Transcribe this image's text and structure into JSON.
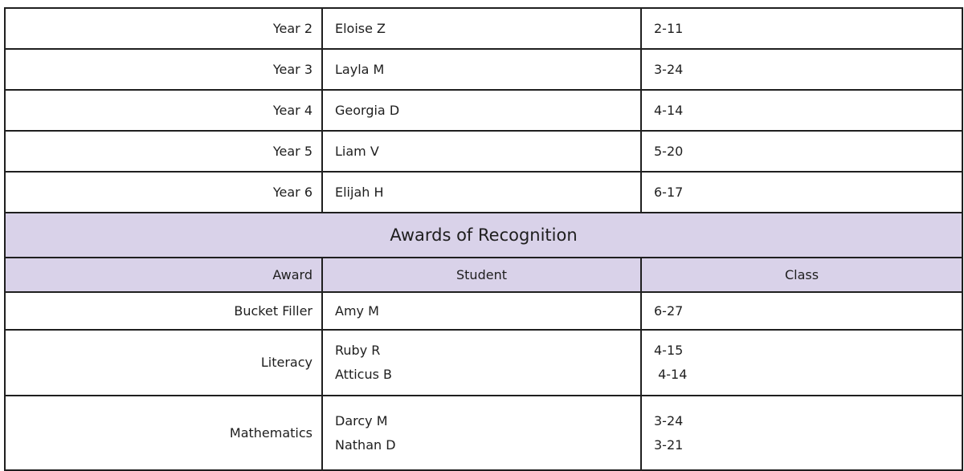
{
  "colors": {
    "header_bg": "#d9d2e9",
    "border": "#1f1f1f",
    "text": "#1e1e1e",
    "page_bg": "#ffffff"
  },
  "table": {
    "year_rows": [
      {
        "year": "Year 2",
        "student": "Eloise Z",
        "class": "2-11"
      },
      {
        "year": "Year 3",
        "student": "Layla M",
        "class": "3-24"
      },
      {
        "year": "Year 4",
        "student": "Georgia D",
        "class": "4-14"
      },
      {
        "year": "Year 5",
        "student": "Liam V",
        "class": "5-20"
      },
      {
        "year": "Year 6",
        "student": "Elijah H",
        "class": "6-17"
      }
    ],
    "section_title": "Awards of Recognition",
    "headers": {
      "award": "Award",
      "student": "Student",
      "class": "Class"
    },
    "award_rows": [
      {
        "award": "Bucket Filler",
        "students": "Amy M",
        "classes": "6-27"
      },
      {
        "award": "Literacy",
        "students": "Ruby R\nAtticus B",
        "classes": "4-15\n 4-14"
      },
      {
        "award": "Mathematics",
        "students": "Darcy M\nNathan D",
        "classes": "3-24\n3-21"
      }
    ]
  }
}
